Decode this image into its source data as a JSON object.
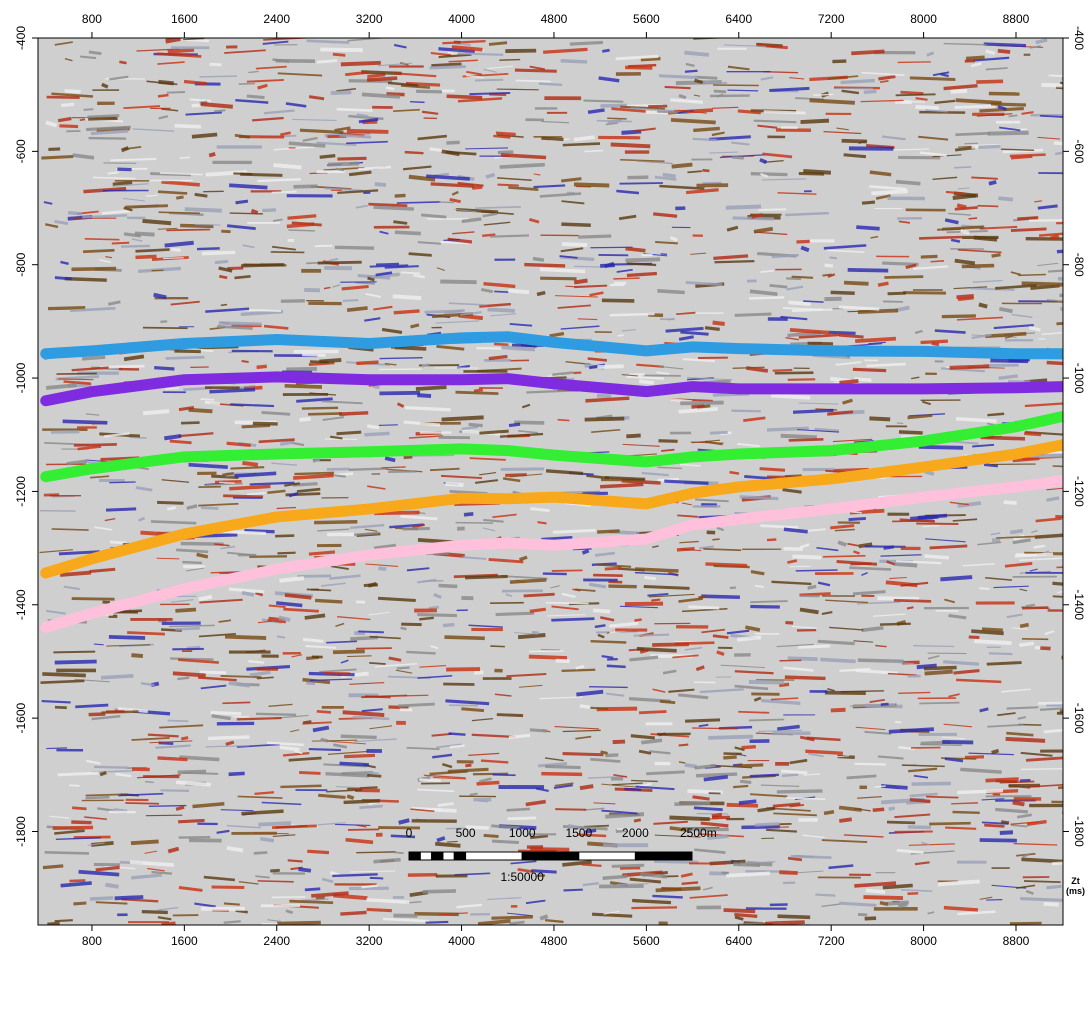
{
  "chart_data": {
    "type": "line",
    "x": [
      400,
      800,
      1600,
      2400,
      3200,
      4000,
      4400,
      4800,
      5600,
      6000,
      6400,
      7200,
      8000,
      8800,
      9200
    ],
    "series": [
      {
        "color": "#2f9be0",
        "values": [
          -957,
          -952,
          -939,
          -932,
          -939,
          -929,
          -927,
          -937,
          -952,
          -945,
          -948,
          -952,
          -953,
          -957,
          -957
        ]
      },
      {
        "color": "#7f2be0",
        "values": [
          -1040,
          -1024,
          -1003,
          -998,
          -1003,
          -1003,
          -1001,
          -1010,
          -1024,
          -1015,
          -1019,
          -1019,
          -1019,
          -1017,
          -1015
        ]
      },
      {
        "color": "#33ee33",
        "values": [
          -1174,
          -1160,
          -1139,
          -1134,
          -1130,
          -1125,
          -1128,
          -1136,
          -1148,
          -1139,
          -1134,
          -1128,
          -1111,
          -1086,
          -1068
        ]
      },
      {
        "color": "#f7a81b",
        "values": [
          -1344,
          -1319,
          -1275,
          -1245,
          -1231,
          -1212,
          -1213,
          -1210,
          -1222,
          -1203,
          -1192,
          -1178,
          -1157,
          -1134,
          -1118
        ]
      },
      {
        "color": "#ffc0dc",
        "values": [
          -1440,
          -1415,
          -1372,
          -1337,
          -1312,
          -1295,
          -1291,
          -1295,
          -1284,
          -1259,
          -1249,
          -1231,
          -1210,
          -1192,
          -1181
        ]
      }
    ],
    "xlim": [
      333,
      9207
    ],
    "xticks": [
      800,
      1600,
      2400,
      3200,
      4000,
      4800,
      5600,
      6400,
      7200,
      8000,
      8800
    ],
    "ylim": [
      -1965,
      -400
    ],
    "yticks": [
      -400,
      -600,
      -800,
      -1000,
      -1200,
      -1400,
      -1600,
      -1800
    ],
    "y_label": "Zt\n(ms)",
    "scale_bar": {
      "ticks": [
        0,
        500,
        1000,
        1500,
        2000,
        {
          "value": 2500,
          "label": "2500m"
        }
      ],
      "scale": "1:50000"
    }
  }
}
